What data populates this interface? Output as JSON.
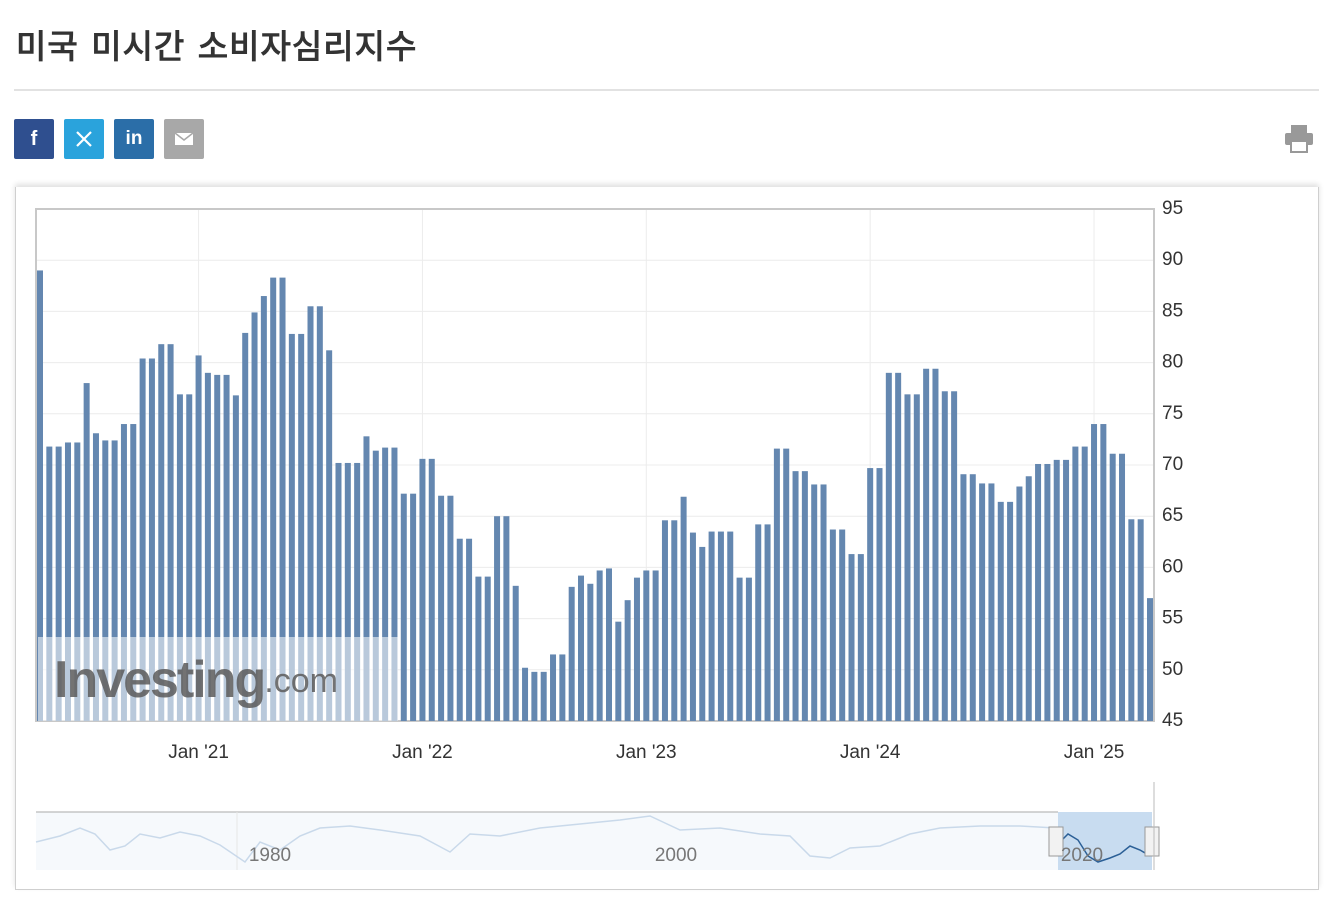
{
  "header": {
    "title": "미국 미시간 소비자심리지수"
  },
  "share": {
    "facebook": "f",
    "linkedin": "in"
  },
  "watermark": {
    "brand": "Investing",
    "suffix": ".com"
  },
  "navigator": {
    "labels": [
      "1980",
      "2000",
      "2020"
    ]
  },
  "chart_data": {
    "type": "bar",
    "color": "#6487b0",
    "grid": true,
    "ylim": [
      45,
      95
    ],
    "yticks": [
      45,
      50,
      55,
      60,
      65,
      70,
      75,
      80,
      85,
      90,
      95
    ],
    "categories": [
      null,
      null,
      null,
      null,
      null,
      null,
      null,
      null,
      null,
      null,
      null,
      null,
      null,
      null,
      null,
      null,
      null,
      "Jan '21",
      null,
      null,
      null,
      null,
      null,
      null,
      null,
      null,
      null,
      null,
      null,
      null,
      null,
      null,
      null,
      null,
      null,
      null,
      null,
      null,
      null,
      null,
      null,
      "Jan '22",
      null,
      null,
      null,
      null,
      null,
      null,
      null,
      null,
      null,
      null,
      null,
      null,
      null,
      null,
      null,
      null,
      null,
      null,
      null,
      null,
      null,
      null,
      null,
      "Jan '23",
      null,
      null,
      null,
      null,
      null,
      null,
      null,
      null,
      null,
      null,
      null,
      null,
      null,
      null,
      null,
      null,
      null,
      null,
      null,
      null,
      null,
      null,
      null,
      "Jan '24",
      null,
      null,
      null,
      null,
      null,
      null,
      null,
      null,
      null,
      null,
      null,
      null,
      null,
      null,
      null,
      null,
      null,
      null,
      null,
      null,
      null,
      null,
      null,
      "Jan '25",
      null,
      null,
      null,
      null,
      null,
      null
    ],
    "values": [
      89.0,
      71.8,
      71.8,
      72.2,
      72.2,
      78.0,
      73.1,
      72.4,
      72.4,
      74.0,
      74.0,
      80.4,
      80.4,
      81.8,
      81.8,
      76.9,
      76.9,
      80.7,
      79.0,
      78.8,
      78.8,
      76.8,
      82.9,
      84.9,
      86.5,
      88.3,
      88.3,
      82.8,
      82.8,
      85.5,
      85.5,
      81.2,
      70.2,
      70.2,
      70.2,
      72.8,
      71.4,
      71.7,
      71.7,
      67.2,
      67.2,
      70.6,
      70.6,
      67.0,
      67.0,
      62.8,
      62.8,
      59.1,
      59.1,
      65.0,
      65.0,
      58.2,
      50.2,
      49.8,
      49.8,
      51.5,
      51.5,
      58.1,
      59.2,
      58.4,
      59.7,
      59.9,
      54.7,
      56.8,
      59.0,
      59.7,
      59.7,
      64.6,
      64.6,
      66.9,
      63.4,
      62.0,
      63.5,
      63.5,
      63.5,
      59.0,
      59.0,
      64.2,
      64.2,
      71.6,
      71.6,
      69.4,
      69.4,
      68.1,
      68.1,
      63.7,
      63.7,
      61.3,
      61.3,
      69.7,
      69.7,
      79.0,
      79.0,
      76.9,
      76.9,
      79.4,
      79.4,
      77.2,
      77.2,
      69.1,
      69.1,
      68.2,
      68.2,
      66.4,
      66.4,
      67.9,
      68.9,
      70.1,
      70.1,
      70.5,
      70.5,
      71.8,
      71.8,
      74.0,
      74.0,
      71.1,
      71.1,
      64.7,
      64.7,
      57.0
    ]
  }
}
